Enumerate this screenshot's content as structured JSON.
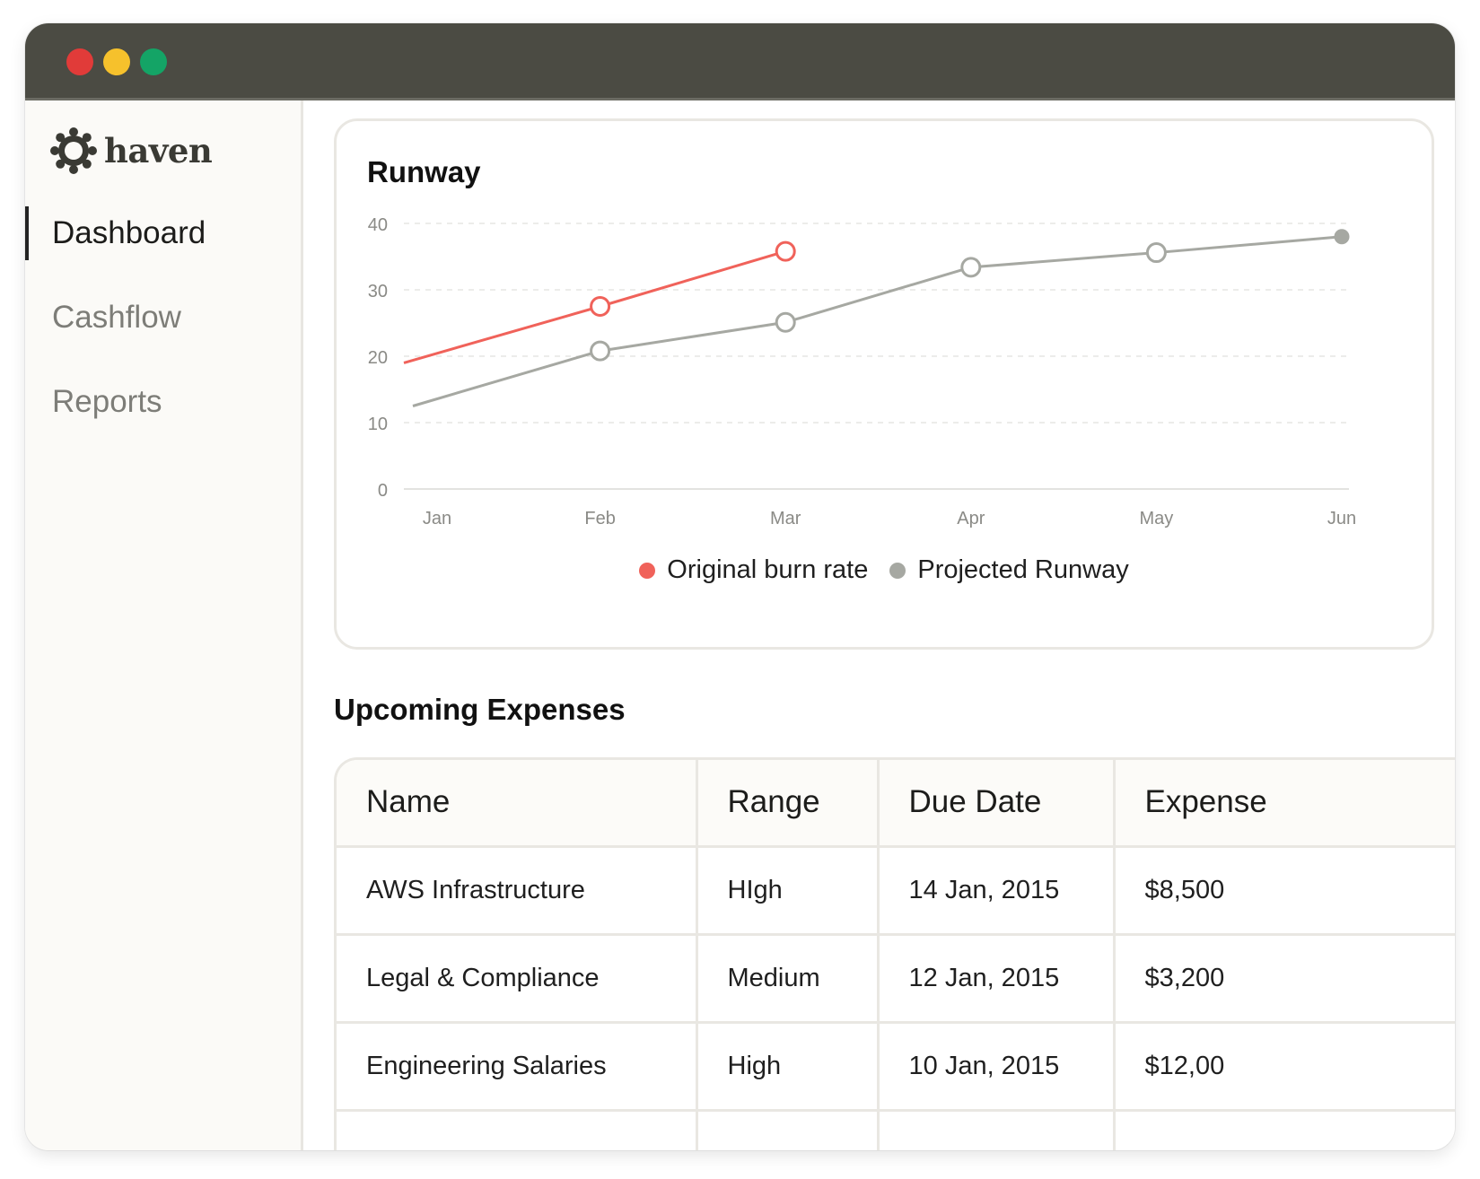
{
  "app": {
    "name": "haven"
  },
  "window": {
    "controls": [
      {
        "name": "close",
        "color": "#e13b39"
      },
      {
        "name": "minimize",
        "color": "#f6c12c"
      },
      {
        "name": "maximize",
        "color": "#14a466"
      }
    ]
  },
  "sidebar": {
    "logo_icon": "gear-flower-icon",
    "items": [
      {
        "label": "Dashboard",
        "active": true
      },
      {
        "label": "Cashflow",
        "active": false
      },
      {
        "label": "Reports",
        "active": false
      }
    ]
  },
  "runway_card": {
    "title": "Runway"
  },
  "chart_data": {
    "type": "line",
    "title": "Runway",
    "categories": [
      "Jan",
      "Feb",
      "Mar",
      "Apr",
      "May",
      "Jun"
    ],
    "ylim": [
      0,
      40
    ],
    "yticks": [
      "0",
      "10",
      "20",
      "30",
      "40"
    ],
    "grid": true,
    "legend_position": "bottom-center",
    "series": [
      {
        "name": "Original burn rate",
        "color": "#f0625a",
        "values": [
          19,
          27.5,
          35.8,
          null,
          null,
          null
        ]
      },
      {
        "name": "Projected Runway",
        "color": "#a6a8a2",
        "values": [
          12.5,
          20.8,
          25.1,
          33.4,
          35.6,
          38.0
        ]
      }
    ]
  },
  "expenses": {
    "title": "Upcoming Expenses",
    "columns": [
      "Name",
      "Range",
      "Due Date",
      "Expense"
    ],
    "rows": [
      [
        "AWS Infrastructure",
        "HIgh",
        "14 Jan, 2015",
        "$8,500"
      ],
      [
        "Legal & Compliance",
        "Medium",
        "12 Jan, 2015",
        "$3,200"
      ],
      [
        "Engineering Salaries",
        "High",
        "10 Jan, 2015",
        "$12,00"
      ],
      [
        "",
        "",
        "",
        ""
      ]
    ]
  }
}
